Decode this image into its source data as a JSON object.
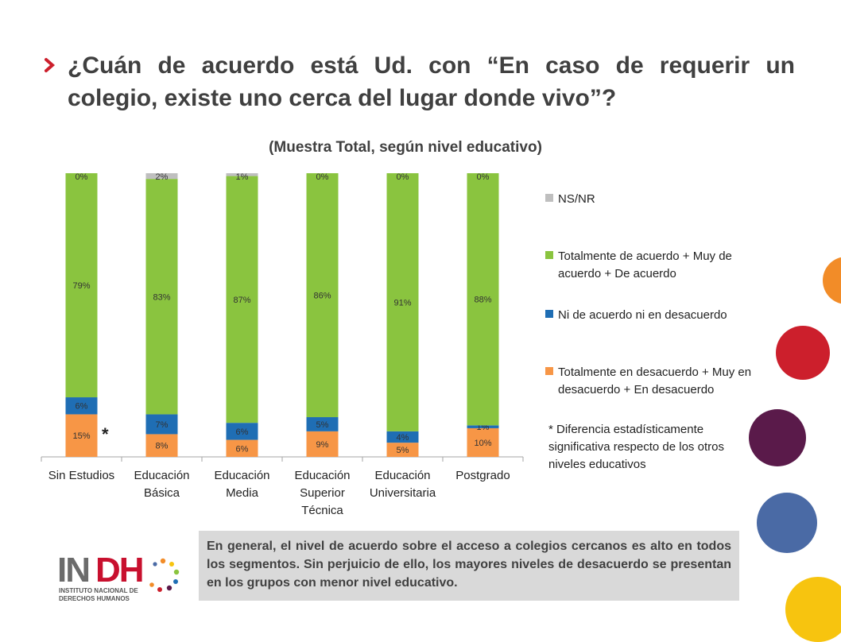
{
  "header": {
    "title": "¿Cuán de acuerdo está Ud. con “En caso de requerir un colegio, existe uno cerca del lugar donde vivo”?",
    "subtitle": "(Muestra Total, según nivel educativo)"
  },
  "chart_data": {
    "type": "bar",
    "stacked": true,
    "percent": true,
    "categories": [
      "Sin Estudios",
      "Educación Básica",
      "Educación Media",
      "Educación Superior Técnica",
      "Educación Universitaria",
      "Postgrado"
    ],
    "category_lines": [
      [
        "Sin Estudios"
      ],
      [
        "Educación",
        "Básica"
      ],
      [
        "Educación",
        "Media"
      ],
      [
        "Educación",
        "Superior",
        "Técnica"
      ],
      [
        "Educación",
        "Universitaria"
      ],
      [
        "Postgrado"
      ]
    ],
    "series": [
      {
        "name": "Totalmente en desacuerdo + Muy en desacuerdo + En desacuerdo",
        "color": "#f79646",
        "values": [
          15,
          8,
          6,
          9,
          5,
          10
        ],
        "labels": [
          "15%",
          "8%",
          "6%",
          "9%",
          "5%",
          "10%"
        ]
      },
      {
        "name": "Ni de acuerdo ni en desacuerdo",
        "color": "#1f6eb4",
        "values": [
          6,
          7,
          6,
          5,
          4,
          1
        ],
        "labels": [
          "6%",
          "7%",
          "6%",
          "5%",
          "4%",
          "1%"
        ]
      },
      {
        "name": "Totalmente de acuerdo + Muy de acuerdo + De acuerdo",
        "color": "#8ac43f",
        "values": [
          79,
          83,
          87,
          86,
          91,
          88
        ],
        "labels": [
          "79%",
          "83%",
          "87%",
          "86%",
          "91%",
          "88%"
        ]
      },
      {
        "name": "NS/NR",
        "color": "#bfbfbf",
        "values": [
          0,
          2,
          1,
          0,
          0,
          0
        ],
        "labels": [
          "0%",
          "2%",
          "1%",
          "0%",
          "0%",
          "0%"
        ]
      }
    ],
    "legend_position": "right",
    "grid": false
  },
  "legend": {
    "items": [
      {
        "label": "NS/NR",
        "color": "#bfbfbf"
      },
      {
        "label": "Totalmente de acuerdo + Muy de acuerdo + De acuerdo",
        "color": "#8ac43f"
      },
      {
        "label": "Ni de acuerdo ni en desacuerdo",
        "color": "#1f6eb4"
      },
      {
        "label": "Totalmente en desacuerdo + Muy en desacuerdo + En desacuerdo",
        "color": "#f79646"
      }
    ]
  },
  "annotations": {
    "asterisk": "*",
    "note": "* Diferencia estadísticamente significativa respecto de los otros niveles educativos"
  },
  "summary": "En general, el nivel de acuerdo sobre el acceso a colegios cercanos es alto en todos los segmentos. Sin perjuicio de ello, los mayores niveles de desacuerdo se presentan en los grupos con menor nivel educativo.",
  "logo": {
    "wordmark": "INDH",
    "line1": "INSTITUTO NACIONAL DE",
    "line2": "DERECHOS HUMANOS",
    "colors": {
      "ind": "#6b6b6b",
      "h": "#c8102e"
    }
  },
  "decor": {
    "circle_colors": [
      "#f28c28",
      "#cc1f2c",
      "#5a1a4a",
      "#4a6aa5",
      "#f7c40f"
    ],
    "arrow_color": "#cc1f2c"
  }
}
